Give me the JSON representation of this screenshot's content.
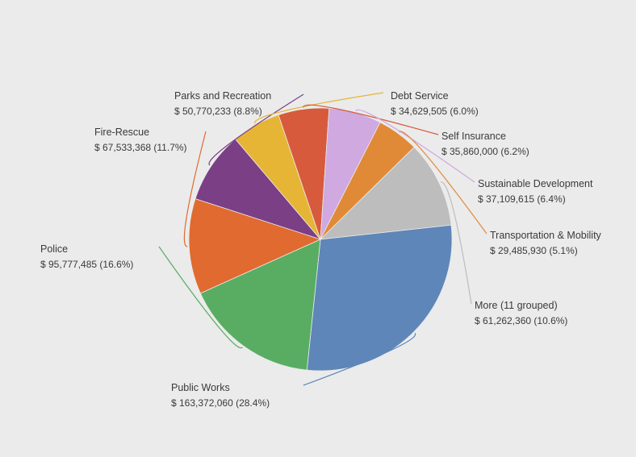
{
  "chart_data": {
    "type": "pie",
    "title": "",
    "start_angle_deg": 162,
    "direction": "clockwise",
    "slices": [
      {
        "name": "Parks and Recreation",
        "value": 50770233,
        "value_label": "$ 50,770,233 (8.8%)",
        "percent": 8.8,
        "color": "#7b3f86"
      },
      {
        "name": "Debt Service",
        "value": 34629505,
        "value_label": "$ 34,629,505 (6.0%)",
        "percent": 6.0,
        "color": "#e6b535"
      },
      {
        "name": "Self Insurance",
        "value": 35860000,
        "value_label": "$ 35,860,000 (6.2%)",
        "percent": 6.2,
        "color": "#d75a3c"
      },
      {
        "name": "Sustainable Development",
        "value": 37109615,
        "value_label": "$ 37,109,615 (6.4%)",
        "percent": 6.4,
        "color": "#cfa9df"
      },
      {
        "name": "Transportation & Mobility",
        "value": 29485930,
        "value_label": "$ 29,485,930 (5.1%)",
        "percent": 5.1,
        "color": "#e08a37"
      },
      {
        "name": "More (11 grouped)",
        "value": 61262360,
        "value_label": "$ 61,262,360 (10.6%)",
        "percent": 10.6,
        "color": "#bdbdbd"
      },
      {
        "name": "Public Works",
        "value": 163372060,
        "value_label": "$ 163,372,060 (28.4%)",
        "percent": 28.4,
        "color": "#5e86b8"
      },
      {
        "name": "Police",
        "value": 95777485,
        "value_label": "$ 95,777,485 (16.6%)",
        "percent": 16.6,
        "color": "#58ad62"
      },
      {
        "name": "Fire-Rescue",
        "value": 67533368,
        "value_label": "$ 67,533,368 (11.7%)",
        "percent": 11.7,
        "color": "#e06a2f"
      }
    ]
  }
}
